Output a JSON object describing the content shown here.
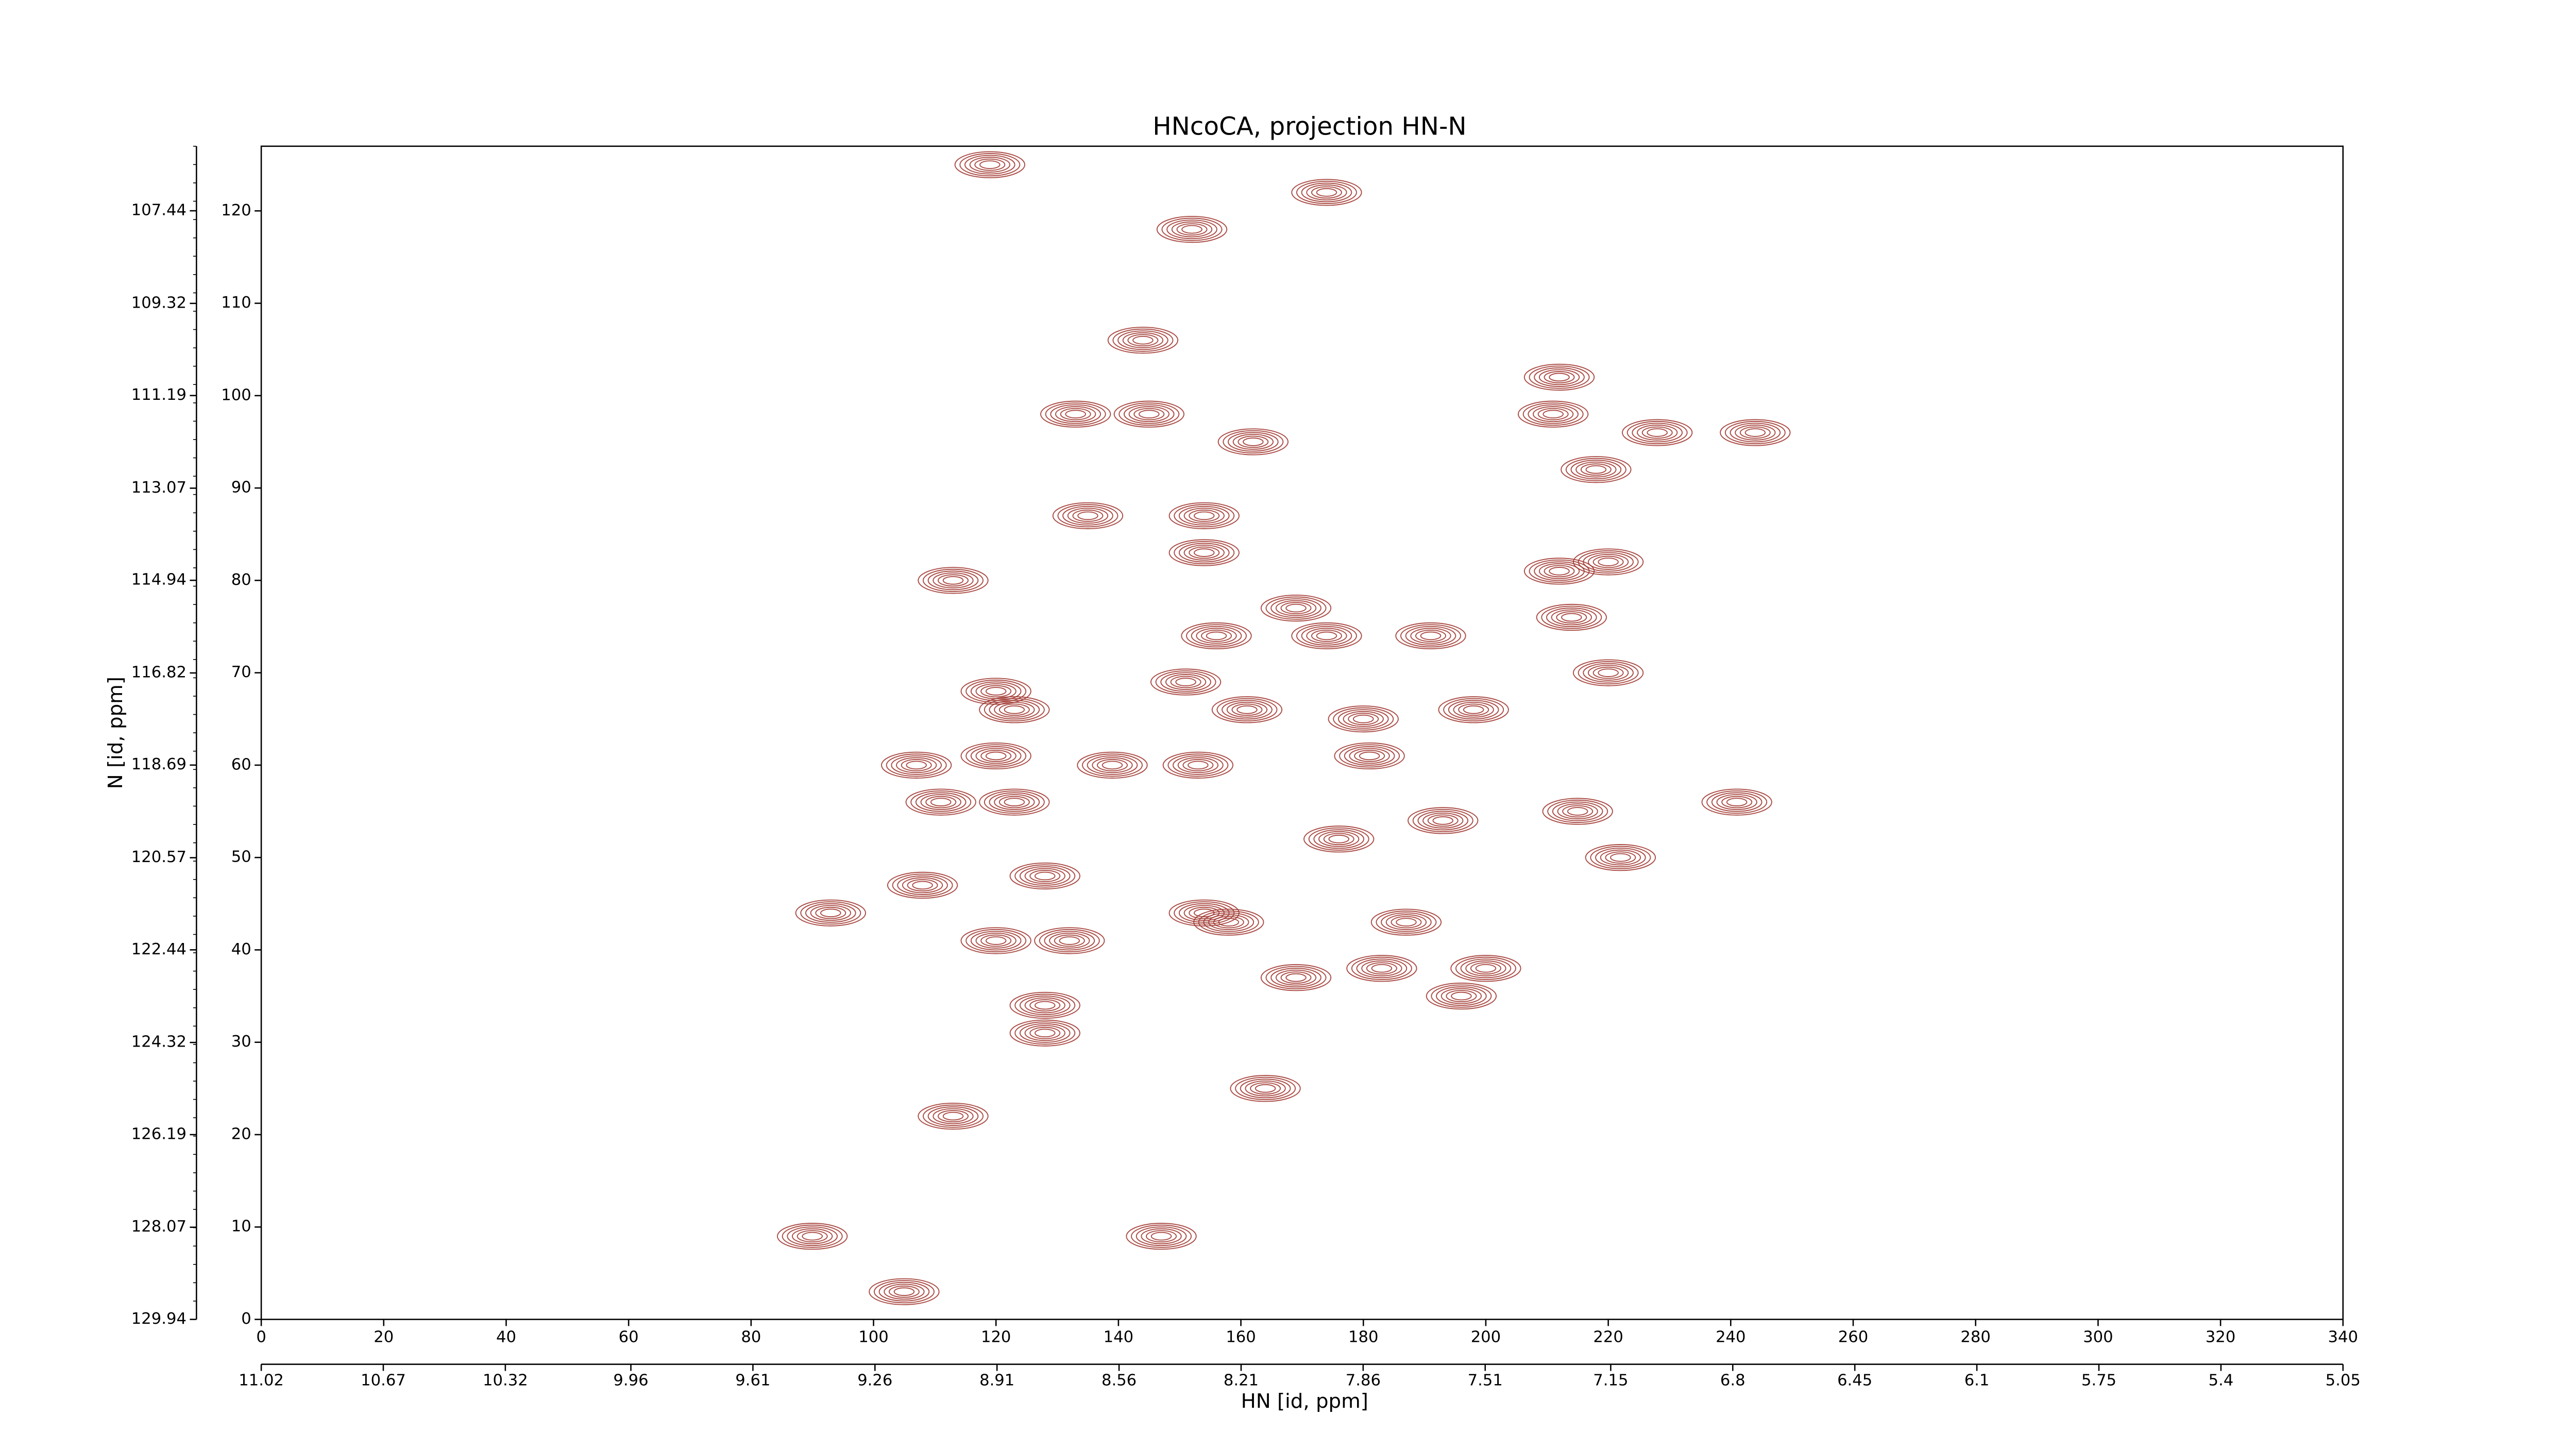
{
  "chart_data": {
    "type": "contour",
    "title": "HNcoCA, projection HN-N",
    "xlabel": "HN [id, ppm]",
    "ylabel": "N [id, ppm]",
    "xlim": [
      0,
      340
    ],
    "xticks": [
      0,
      20,
      40,
      60,
      80,
      100,
      120,
      140,
      160,
      180,
      200,
      220,
      240,
      260,
      280,
      300,
      320,
      340
    ],
    "ylim": [
      0,
      127
    ],
    "yticks": [
      0,
      10,
      20,
      30,
      40,
      50,
      60,
      70,
      80,
      90,
      100,
      110,
      120
    ],
    "x2lim": [
      11.02,
      5.05
    ],
    "x2ticks": [
      11.02,
      10.67,
      10.32,
      9.96,
      9.61,
      9.26,
      8.91,
      8.56,
      8.21,
      7.86,
      7.51,
      7.15,
      6.8,
      6.45,
      6.1,
      5.75,
      5.4,
      5.05
    ],
    "y2lim": [
      129.94,
      106.13
    ],
    "y2ticks": [
      129.94,
      128.07,
      126.19,
      124.32,
      122.44,
      120.57,
      118.69,
      116.82,
      114.94,
      113.07,
      111.19,
      109.32,
      107.44
    ],
    "color": "#a23b33",
    "peaks": {
      "x": [
        119,
        152,
        174,
        144,
        133,
        145,
        162,
        212,
        211,
        228,
        244,
        218,
        135,
        154,
        154,
        113,
        212,
        220,
        214,
        169,
        156,
        174,
        191,
        120,
        151,
        220,
        123,
        161,
        180,
        198,
        120,
        139,
        153,
        181,
        107,
        111,
        123,
        193,
        215,
        241,
        176,
        128,
        108,
        222,
        93,
        154,
        120,
        132,
        158,
        169,
        187,
        183,
        200,
        196,
        128,
        128,
        164,
        113,
        90,
        147,
        105
      ],
      "y": [
        125,
        118,
        122,
        106,
        98,
        98,
        95,
        102,
        98,
        96,
        96,
        92,
        87,
        87,
        83,
        80,
        81,
        82,
        76,
        77,
        74,
        74,
        74,
        68,
        69,
        70,
        66,
        66,
        65,
        66,
        61,
        60,
        60,
        61,
        60,
        56,
        56,
        54,
        55,
        56,
        52,
        48,
        47,
        50,
        44,
        44,
        41,
        41,
        43,
        37,
        43,
        38,
        38,
        35,
        34,
        31,
        25,
        22,
        9,
        9,
        3
      ]
    }
  }
}
